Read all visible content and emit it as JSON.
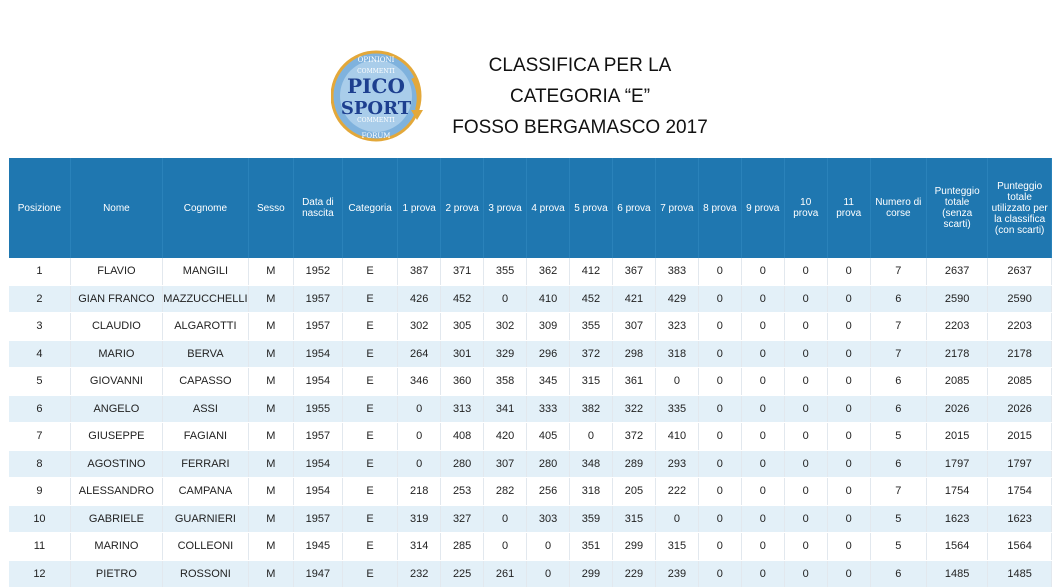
{
  "title_lines": [
    "CLASSIFICA PER LA",
    "CATEGORIA “E”",
    "FOSSO BERGAMASCO 2017"
  ],
  "logo": {
    "top": "PICO",
    "bottom": "SPORT",
    "ring_top": "OPINIONI",
    "ring_bottom": "FORUM",
    "ring_left": "COMMENTI",
    "ring_right": "COMMENTI"
  },
  "colors": {
    "header_bg": "#1f77b0",
    "row_alt": "#e3f0f8"
  },
  "columns": [
    "Posizione",
    "Nome",
    "Cognome",
    "Sesso",
    "Data di nascita",
    "Categoria",
    "1 prova",
    "2 prova",
    "3 prova",
    "4 prova",
    "5 prova",
    "6 prova",
    "7 prova",
    "8 prova",
    "9 prova",
    "10 prova",
    "11 prova",
    "Numero di corse",
    "Punteggio totale (senza scarti)",
    "Punteggio totale utilizzato per la classifica (con scarti)"
  ],
  "rows": [
    [
      "1",
      "FLAVIO",
      "MANGILI",
      "M",
      "1952",
      "E",
      "387",
      "371",
      "355",
      "362",
      "412",
      "367",
      "383",
      "0",
      "0",
      "0",
      "0",
      "7",
      "2637",
      "2637"
    ],
    [
      "2",
      "GIAN FRANCO",
      "MAZZUCCHELLI",
      "M",
      "1957",
      "E",
      "426",
      "452",
      "0",
      "410",
      "452",
      "421",
      "429",
      "0",
      "0",
      "0",
      "0",
      "6",
      "2590",
      "2590"
    ],
    [
      "3",
      "CLAUDIO",
      "ALGAROTTI",
      "M",
      "1957",
      "E",
      "302",
      "305",
      "302",
      "309",
      "355",
      "307",
      "323",
      "0",
      "0",
      "0",
      "0",
      "7",
      "2203",
      "2203"
    ],
    [
      "4",
      "MARIO",
      "BERVA",
      "M",
      "1954",
      "E",
      "264",
      "301",
      "329",
      "296",
      "372",
      "298",
      "318",
      "0",
      "0",
      "0",
      "0",
      "7",
      "2178",
      "2178"
    ],
    [
      "5",
      "GIOVANNI",
      "CAPASSO",
      "M",
      "1954",
      "E",
      "346",
      "360",
      "358",
      "345",
      "315",
      "361",
      "0",
      "0",
      "0",
      "0",
      "0",
      "6",
      "2085",
      "2085"
    ],
    [
      "6",
      "ANGELO",
      "ASSI",
      "M",
      "1955",
      "E",
      "0",
      "313",
      "341",
      "333",
      "382",
      "322",
      "335",
      "0",
      "0",
      "0",
      "0",
      "6",
      "2026",
      "2026"
    ],
    [
      "7",
      "GIUSEPPE",
      "FAGIANI",
      "M",
      "1957",
      "E",
      "0",
      "408",
      "420",
      "405",
      "0",
      "372",
      "410",
      "0",
      "0",
      "0",
      "0",
      "5",
      "2015",
      "2015"
    ],
    [
      "8",
      "AGOSTINO",
      "FERRARI",
      "M",
      "1954",
      "E",
      "0",
      "280",
      "307",
      "280",
      "348",
      "289",
      "293",
      "0",
      "0",
      "0",
      "0",
      "6",
      "1797",
      "1797"
    ],
    [
      "9",
      "ALESSANDRO",
      "CAMPANA",
      "M",
      "1954",
      "E",
      "218",
      "253",
      "282",
      "256",
      "318",
      "205",
      "222",
      "0",
      "0",
      "0",
      "0",
      "7",
      "1754",
      "1754"
    ],
    [
      "10",
      "GABRIELE",
      "GUARNIERI",
      "M",
      "1957",
      "E",
      "319",
      "327",
      "0",
      "303",
      "359",
      "315",
      "0",
      "0",
      "0",
      "0",
      "0",
      "5",
      "1623",
      "1623"
    ],
    [
      "11",
      "MARINO",
      "COLLEONI",
      "M",
      "1945",
      "E",
      "314",
      "285",
      "0",
      "0",
      "351",
      "299",
      "315",
      "0",
      "0",
      "0",
      "0",
      "5",
      "1564",
      "1564"
    ],
    [
      "12",
      "PIETRO",
      "ROSSONI",
      "M",
      "1947",
      "E",
      "232",
      "225",
      "261",
      "0",
      "299",
      "229",
      "239",
      "0",
      "0",
      "0",
      "0",
      "6",
      "1485",
      "1485"
    ]
  ]
}
